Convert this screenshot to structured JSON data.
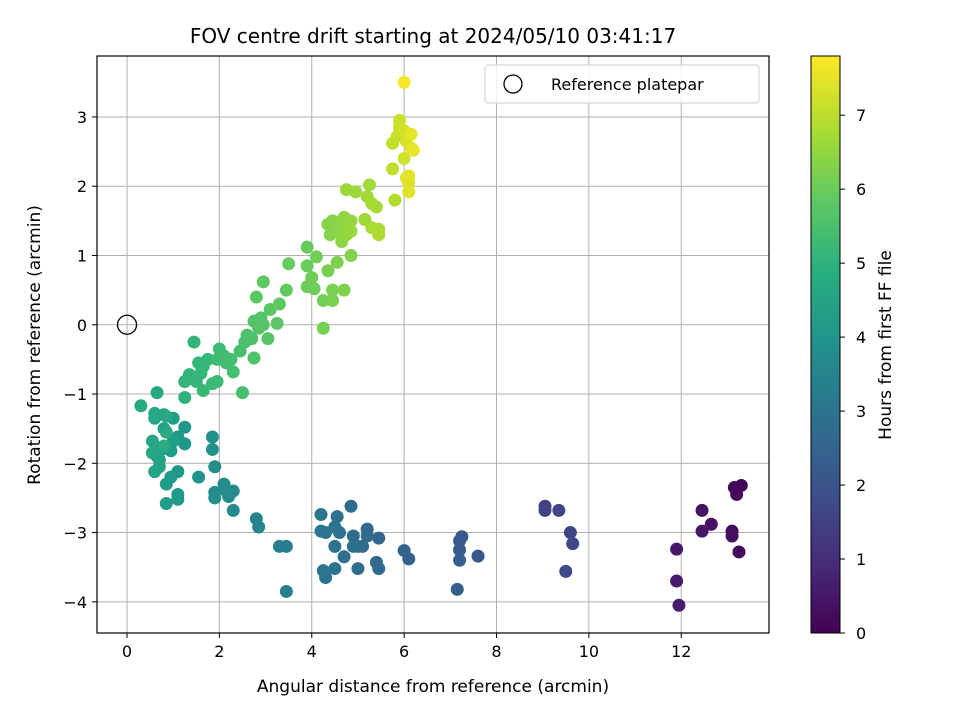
{
  "chart_data": {
    "type": "scatter",
    "title": "FOV centre drift starting at 2024/05/10 03:41:17",
    "xlabel": "Angular distance from reference (arcmin)",
    "ylabel": "Rotation from reference (arcmin)",
    "xlim": [
      -0.65,
      13.9
    ],
    "ylim": [
      -4.45,
      3.88
    ],
    "xticks": [
      0,
      2,
      4,
      6,
      8,
      10,
      12
    ],
    "yticks": [
      -4,
      -3,
      -2,
      -1,
      0,
      1,
      2,
      3
    ],
    "xtick_labels": [
      "0",
      "2",
      "4",
      "6",
      "8",
      "10",
      "12"
    ],
    "ytick_labels": [
      "−4",
      "−3",
      "−2",
      "−1",
      "0",
      "1",
      "2",
      "3"
    ],
    "grid": true,
    "legend": {
      "position": "top-right",
      "entries": [
        "Reference platepar"
      ]
    },
    "reference_point": {
      "x": 0,
      "y": 0,
      "label": "Reference platepar",
      "marker": "open-circle"
    },
    "colorbar": {
      "label": "Hours from first FF file",
      "colormap": "viridis",
      "range": [
        0,
        7.8
      ],
      "ticks": [
        0,
        1,
        2,
        3,
        4,
        5,
        6,
        7
      ],
      "tick_labels": [
        "0",
        "1",
        "2",
        "3",
        "4",
        "5",
        "6",
        "7"
      ]
    },
    "points": [
      {
        "x": 13.3,
        "y": -2.32,
        "c": 0.05
      },
      {
        "x": 13.15,
        "y": -2.35,
        "c": 0.1
      },
      {
        "x": 13.2,
        "y": -2.45,
        "c": 0.15
      },
      {
        "x": 13.25,
        "y": -3.28,
        "c": 0.2
      },
      {
        "x": 13.1,
        "y": -2.98,
        "c": 0.25
      },
      {
        "x": 13.1,
        "y": -3.05,
        "c": 0.3
      },
      {
        "x": 12.65,
        "y": -2.88,
        "c": 0.35
      },
      {
        "x": 12.45,
        "y": -2.68,
        "c": 0.4
      },
      {
        "x": 12.45,
        "y": -2.98,
        "c": 0.45
      },
      {
        "x": 11.9,
        "y": -3.24,
        "c": 0.5
      },
      {
        "x": 11.9,
        "y": -3.7,
        "c": 0.55
      },
      {
        "x": 11.95,
        "y": -4.05,
        "c": 0.6
      },
      {
        "x": 9.05,
        "y": -2.62,
        "c": 1.5
      },
      {
        "x": 9.05,
        "y": -2.68,
        "c": 1.55
      },
      {
        "x": 9.35,
        "y": -2.68,
        "c": 1.6
      },
      {
        "x": 9.6,
        "y": -3.0,
        "c": 1.65
      },
      {
        "x": 9.65,
        "y": -3.16,
        "c": 1.7
      },
      {
        "x": 9.5,
        "y": -3.56,
        "c": 1.75
      },
      {
        "x": 7.6,
        "y": -3.34,
        "c": 2.1
      },
      {
        "x": 7.25,
        "y": -3.06,
        "c": 2.15
      },
      {
        "x": 7.2,
        "y": -3.12,
        "c": 2.2
      },
      {
        "x": 7.2,
        "y": -3.25,
        "c": 2.25
      },
      {
        "x": 7.2,
        "y": -3.4,
        "c": 2.3
      },
      {
        "x": 7.15,
        "y": -3.82,
        "c": 2.35
      },
      {
        "x": 6.1,
        "y": -3.38,
        "c": 2.45
      },
      {
        "x": 6.0,
        "y": -3.26,
        "c": 2.5
      },
      {
        "x": 5.45,
        "y": -3.08,
        "c": 2.55
      },
      {
        "x": 5.4,
        "y": -3.43,
        "c": 2.6
      },
      {
        "x": 5.45,
        "y": -3.52,
        "c": 2.62
      },
      {
        "x": 5.2,
        "y": -2.95,
        "c": 2.65
      },
      {
        "x": 5.2,
        "y": -3.05,
        "c": 2.68
      },
      {
        "x": 5.1,
        "y": -3.2,
        "c": 2.7
      },
      {
        "x": 5.0,
        "y": -3.2,
        "c": 2.72
      },
      {
        "x": 4.9,
        "y": -3.05,
        "c": 2.75
      },
      {
        "x": 4.85,
        "y": -2.62,
        "c": 2.78
      },
      {
        "x": 4.9,
        "y": -3.2,
        "c": 2.8
      },
      {
        "x": 5.0,
        "y": -3.52,
        "c": 2.82
      },
      {
        "x": 4.7,
        "y": -3.35,
        "c": 2.85
      },
      {
        "x": 4.6,
        "y": -3.0,
        "c": 2.88
      },
      {
        "x": 4.55,
        "y": -2.77,
        "c": 2.9
      },
      {
        "x": 4.5,
        "y": -2.92,
        "c": 2.92
      },
      {
        "x": 4.5,
        "y": -3.2,
        "c": 2.95
      },
      {
        "x": 4.5,
        "y": -3.52,
        "c": 2.98
      },
      {
        "x": 4.3,
        "y": -3.65,
        "c": 3.0
      },
      {
        "x": 4.25,
        "y": -3.55,
        "c": 3.02
      },
      {
        "x": 4.3,
        "y": -3.0,
        "c": 3.05
      },
      {
        "x": 4.2,
        "y": -2.98,
        "c": 3.08
      },
      {
        "x": 4.2,
        "y": -2.74,
        "c": 3.1
      },
      {
        "x": 3.45,
        "y": -3.2,
        "c": 3.3
      },
      {
        "x": 3.3,
        "y": -3.2,
        "c": 3.32
      },
      {
        "x": 3.45,
        "y": -3.85,
        "c": 3.35
      },
      {
        "x": 2.8,
        "y": -2.8,
        "c": 3.5
      },
      {
        "x": 2.85,
        "y": -2.92,
        "c": 3.52
      },
      {
        "x": 2.3,
        "y": -2.4,
        "c": 3.7
      },
      {
        "x": 2.3,
        "y": -2.68,
        "c": 3.72
      },
      {
        "x": 2.2,
        "y": -2.48,
        "c": 3.75
      },
      {
        "x": 2.1,
        "y": -2.3,
        "c": 3.78
      },
      {
        "x": 2.15,
        "y": -2.4,
        "c": 3.8
      },
      {
        "x": 1.9,
        "y": -2.42,
        "c": 3.82
      },
      {
        "x": 1.9,
        "y": -2.5,
        "c": 3.85
      },
      {
        "x": 1.9,
        "y": -2.05,
        "c": 3.88
      },
      {
        "x": 1.85,
        "y": -1.62,
        "c": 3.9
      },
      {
        "x": 1.85,
        "y": -1.8,
        "c": 3.92
      },
      {
        "x": 1.55,
        "y": -2.2,
        "c": 4.0
      },
      {
        "x": 1.25,
        "y": -1.72,
        "c": 4.1
      },
      {
        "x": 1.25,
        "y": -1.48,
        "c": 4.12
      },
      {
        "x": 1.1,
        "y": -1.62,
        "c": 4.15
      },
      {
        "x": 1.1,
        "y": -2.12,
        "c": 4.18
      },
      {
        "x": 1.1,
        "y": -2.45,
        "c": 4.2
      },
      {
        "x": 1.1,
        "y": -2.52,
        "c": 4.22
      },
      {
        "x": 0.95,
        "y": -2.2,
        "c": 4.25
      },
      {
        "x": 0.85,
        "y": -2.3,
        "c": 4.28
      },
      {
        "x": 0.85,
        "y": -2.58,
        "c": 4.3
      },
      {
        "x": 0.95,
        "y": -1.82,
        "c": 4.32
      },
      {
        "x": 1.0,
        "y": -1.68,
        "c": 4.35
      },
      {
        "x": 1.0,
        "y": -1.35,
        "c": 4.38
      },
      {
        "x": 0.8,
        "y": -1.3,
        "c": 4.4
      },
      {
        "x": 0.8,
        "y": -1.5,
        "c": 4.42
      },
      {
        "x": 0.75,
        "y": -1.8,
        "c": 4.45
      },
      {
        "x": 0.7,
        "y": -1.95,
        "c": 4.48
      },
      {
        "x": 0.7,
        "y": -2.05,
        "c": 4.5
      },
      {
        "x": 0.65,
        "y": -1.9,
        "c": 4.52
      },
      {
        "x": 0.6,
        "y": -2.12,
        "c": 4.55
      },
      {
        "x": 0.55,
        "y": -1.85,
        "c": 4.58
      },
      {
        "x": 0.55,
        "y": -1.68,
        "c": 4.6
      },
      {
        "x": 0.6,
        "y": -1.35,
        "c": 4.62
      },
      {
        "x": 0.6,
        "y": -1.28,
        "c": 4.65
      },
      {
        "x": 0.85,
        "y": -1.32,
        "c": 4.68
      },
      {
        "x": 0.3,
        "y": -1.17,
        "c": 4.7
      },
      {
        "x": 0.65,
        "y": -0.98,
        "c": 4.72
      },
      {
        "x": 0.85,
        "y": -1.55,
        "c": 4.75
      },
      {
        "x": 0.8,
        "y": -1.75,
        "c": 4.78
      },
      {
        "x": 1.25,
        "y": -1.05,
        "c": 5.0
      },
      {
        "x": 1.25,
        "y": -0.82,
        "c": 5.05
      },
      {
        "x": 1.35,
        "y": -0.72,
        "c": 5.08
      },
      {
        "x": 1.5,
        "y": -0.82,
        "c": 5.1
      },
      {
        "x": 1.45,
        "y": -0.25,
        "c": 5.12
      },
      {
        "x": 1.55,
        "y": -0.55,
        "c": 5.15
      },
      {
        "x": 1.6,
        "y": -0.7,
        "c": 5.18
      },
      {
        "x": 1.65,
        "y": -0.6,
        "c": 5.2
      },
      {
        "x": 1.75,
        "y": -0.5,
        "c": 5.22
      },
      {
        "x": 1.65,
        "y": -0.95,
        "c": 5.25
      },
      {
        "x": 1.85,
        "y": -0.85,
        "c": 5.28
      },
      {
        "x": 1.95,
        "y": -0.82,
        "c": 5.3
      },
      {
        "x": 1.95,
        "y": -0.5,
        "c": 5.32
      },
      {
        "x": 2.0,
        "y": -0.35,
        "c": 5.35
      },
      {
        "x": 2.1,
        "y": -0.45,
        "c": 5.38
      },
      {
        "x": 2.15,
        "y": -0.55,
        "c": 5.4
      },
      {
        "x": 2.25,
        "y": -0.5,
        "c": 5.42
      },
      {
        "x": 2.3,
        "y": -0.68,
        "c": 5.45
      },
      {
        "x": 2.5,
        "y": -0.98,
        "c": 5.48
      },
      {
        "x": 2.45,
        "y": -0.38,
        "c": 5.5
      },
      {
        "x": 2.55,
        "y": -0.25,
        "c": 5.52
      },
      {
        "x": 2.6,
        "y": -0.15,
        "c": 5.55
      },
      {
        "x": 2.7,
        "y": -0.2,
        "c": 5.58
      },
      {
        "x": 2.75,
        "y": -0.48,
        "c": 5.6
      },
      {
        "x": 2.75,
        "y": 0.05,
        "c": 5.62
      },
      {
        "x": 2.85,
        "y": -0.05,
        "c": 5.65
      },
      {
        "x": 2.9,
        "y": 0.1,
        "c": 5.68
      },
      {
        "x": 2.95,
        "y": 0.0,
        "c": 5.7
      },
      {
        "x": 3.05,
        "y": -0.2,
        "c": 5.72
      },
      {
        "x": 3.1,
        "y": 0.22,
        "c": 5.75
      },
      {
        "x": 3.25,
        "y": 0.02,
        "c": 5.78
      },
      {
        "x": 2.8,
        "y": 0.4,
        "c": 5.8
      },
      {
        "x": 2.95,
        "y": 0.62,
        "c": 5.82
      },
      {
        "x": 3.3,
        "y": 0.3,
        "c": 5.85
      },
      {
        "x": 3.45,
        "y": 0.5,
        "c": 5.88
      },
      {
        "x": 3.5,
        "y": 0.88,
        "c": 5.9
      },
      {
        "x": 3.9,
        "y": 1.12,
        "c": 5.95
      },
      {
        "x": 3.9,
        "y": 0.85,
        "c": 6.0
      },
      {
        "x": 3.9,
        "y": 0.55,
        "c": 6.02
      },
      {
        "x": 4.05,
        "y": 0.52,
        "c": 6.05
      },
      {
        "x": 4.0,
        "y": 0.68,
        "c": 6.08
      },
      {
        "x": 4.1,
        "y": 0.98,
        "c": 6.1
      },
      {
        "x": 4.25,
        "y": 0.35,
        "c": 6.12
      },
      {
        "x": 4.25,
        "y": -0.05,
        "c": 6.15
      },
      {
        "x": 4.35,
        "y": 0.78,
        "c": 6.18
      },
      {
        "x": 4.45,
        "y": 0.35,
        "c": 6.2
      },
      {
        "x": 4.45,
        "y": 0.5,
        "c": 6.22
      },
      {
        "x": 4.55,
        "y": 0.9,
        "c": 6.25
      },
      {
        "x": 4.7,
        "y": 0.5,
        "c": 6.28
      },
      {
        "x": 4.85,
        "y": 1.0,
        "c": 6.3
      },
      {
        "x": 4.4,
        "y": 1.3,
        "c": 6.32
      },
      {
        "x": 4.35,
        "y": 1.45,
        "c": 6.35
      },
      {
        "x": 4.45,
        "y": 1.5,
        "c": 6.38
      },
      {
        "x": 4.55,
        "y": 1.35,
        "c": 6.4
      },
      {
        "x": 4.6,
        "y": 1.45,
        "c": 6.42
      },
      {
        "x": 4.65,
        "y": 1.2,
        "c": 6.45
      },
      {
        "x": 4.7,
        "y": 1.55,
        "c": 6.48
      },
      {
        "x": 4.75,
        "y": 1.3,
        "c": 6.5
      },
      {
        "x": 4.8,
        "y": 1.45,
        "c": 6.52
      },
      {
        "x": 4.85,
        "y": 1.5,
        "c": 6.55
      },
      {
        "x": 4.85,
        "y": 1.35,
        "c": 6.58
      },
      {
        "x": 4.75,
        "y": 1.95,
        "c": 6.6
      },
      {
        "x": 4.95,
        "y": 1.92,
        "c": 6.62
      },
      {
        "x": 5.15,
        "y": 1.52,
        "c": 6.65
      },
      {
        "x": 5.2,
        "y": 1.85,
        "c": 6.68
      },
      {
        "x": 5.25,
        "y": 2.02,
        "c": 6.7
      },
      {
        "x": 5.3,
        "y": 1.75,
        "c": 6.72
      },
      {
        "x": 5.4,
        "y": 1.7,
        "c": 6.75
      },
      {
        "x": 5.3,
        "y": 1.4,
        "c": 6.78
      },
      {
        "x": 5.45,
        "y": 1.3,
        "c": 6.8
      },
      {
        "x": 5.45,
        "y": 1.38,
        "c": 6.82
      },
      {
        "x": 5.8,
        "y": 1.8,
        "c": 6.9
      },
      {
        "x": 5.75,
        "y": 2.25,
        "c": 7.0
      },
      {
        "x": 5.75,
        "y": 2.62,
        "c": 7.05
      },
      {
        "x": 5.85,
        "y": 2.72,
        "c": 7.1
      },
      {
        "x": 5.9,
        "y": 2.85,
        "c": 7.15
      },
      {
        "x": 5.9,
        "y": 2.95,
        "c": 7.2
      },
      {
        "x": 6.0,
        "y": 2.4,
        "c": 7.25
      },
      {
        "x": 6.0,
        "y": 2.8,
        "c": 7.3
      },
      {
        "x": 6.05,
        "y": 2.65,
        "c": 7.35
      },
      {
        "x": 6.05,
        "y": 2.12,
        "c": 7.4
      },
      {
        "x": 6.1,
        "y": 2.05,
        "c": 7.42
      },
      {
        "x": 6.1,
        "y": 1.92,
        "c": 7.45
      },
      {
        "x": 6.1,
        "y": 2.15,
        "c": 7.48
      },
      {
        "x": 6.15,
        "y": 2.55,
        "c": 7.5
      },
      {
        "x": 6.15,
        "y": 2.75,
        "c": 7.52
      },
      {
        "x": 6.2,
        "y": 2.52,
        "c": 7.55
      },
      {
        "x": 6.0,
        "y": 3.5,
        "c": 7.7
      }
    ]
  }
}
